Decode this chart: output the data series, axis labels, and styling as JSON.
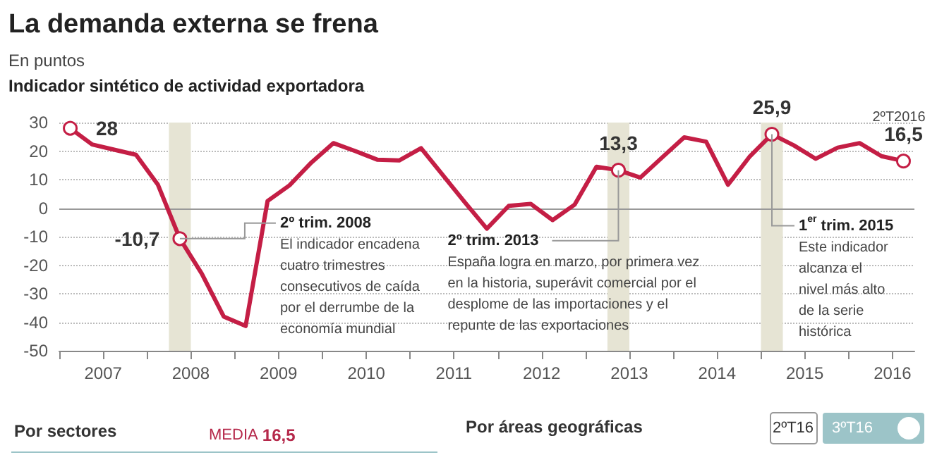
{
  "chart_data": {
    "type": "line",
    "title": "La demanda externa se frena",
    "subtitle": "En puntos",
    "ylabel": "Indicador sintético de actividad exportadora",
    "x": [
      2007.125,
      2007.375,
      2007.625,
      2007.875,
      2008.125,
      2008.375,
      2008.625,
      2008.875,
      2009.125,
      2009.375,
      2009.625,
      2009.875,
      2010.125,
      2010.375,
      2010.625,
      2010.875,
      2011.125,
      2011.375,
      2011.625,
      2011.875,
      2012.125,
      2012.375,
      2012.625,
      2012.875,
      2013.125,
      2013.375,
      2013.625,
      2013.875,
      2014.125,
      2014.375,
      2014.625,
      2014.875,
      2015.125,
      2015.375,
      2015.625,
      2015.875,
      2016.125,
      2016.375,
      2016.625
    ],
    "series": [
      {
        "color": "#c41e45",
        "values": [
          28,
          22.3,
          20.5,
          18.7,
          8.2,
          -10.7,
          -23,
          -38,
          -41.3,
          2.5,
          8,
          16,
          22.8,
          20,
          17,
          16.7,
          21,
          11.5,
          2,
          -7.2,
          0.8,
          1.5,
          -4.2,
          1.2,
          14.5,
          13.3,
          10.7,
          17.8,
          24.8,
          23.3,
          8.2,
          18.2,
          25.9,
          22,
          17.3,
          21.2,
          22.8,
          18.2,
          16.5
        ],
        "value_labels": [
          "28",
          null,
          null,
          null,
          null,
          "-10,7",
          null,
          null,
          null,
          null,
          null,
          null,
          null,
          null,
          null,
          null,
          null,
          null,
          null,
          null,
          null,
          null,
          null,
          null,
          null,
          "13,3",
          null,
          null,
          null,
          null,
          null,
          null,
          "25,9",
          null,
          null,
          null,
          null,
          null,
          "16,5"
        ]
      }
    ],
    "xlim": [
      2007,
      2016.75
    ],
    "xticks": [
      {
        "value": 2007,
        "label": null
      },
      {
        "value": 2007.5,
        "label": "2007"
      },
      {
        "value": 2008,
        "label": null
      },
      {
        "value": 2008.5,
        "label": "2008"
      },
      {
        "value": 2009,
        "label": null
      },
      {
        "value": 2009.5,
        "label": "2009"
      },
      {
        "value": 2010,
        "label": null
      },
      {
        "value": 2010.5,
        "label": "2010"
      },
      {
        "value": 2011,
        "label": null
      },
      {
        "value": 2011.5,
        "label": "2011"
      },
      {
        "value": 2012,
        "label": null
      },
      {
        "value": 2012.5,
        "label": "2012"
      },
      {
        "value": 2013,
        "label": null
      },
      {
        "value": 2013.5,
        "label": "2013"
      },
      {
        "value": 2014,
        "label": null
      },
      {
        "value": 2014.5,
        "label": "2014"
      },
      {
        "value": 2015,
        "label": null
      },
      {
        "value": 2015.5,
        "label": "2015"
      },
      {
        "value": 2016,
        "label": null
      },
      {
        "value": 2016.5,
        "label": "2016"
      }
    ],
    "ylim": [
      -50,
      30
    ],
    "yticks": [
      -50,
      -40,
      -30,
      -20,
      -10,
      0,
      10,
      20,
      30
    ],
    "grid": "y",
    "line_style": "solid",
    "ref_lines": [
      {
        "axis": "y",
        "value": 0,
        "color": "#999999",
        "line_style": "solid"
      }
    ],
    "bands": [
      {
        "axis": "x",
        "from": 2008.25,
        "to": 2008.5,
        "color": "#e6e4d4"
      },
      {
        "axis": "x",
        "from": 2013.25,
        "to": 2013.5,
        "color": "#e6e4d4"
      },
      {
        "axis": "x",
        "from": 2015.0,
        "to": 2015.25,
        "color": "#e6e4d4"
      }
    ],
    "annotations": [
      {
        "text": "2º trim. 2008\nEl indicador encadena\ncuatro trimestres\nconsecutivos de caída\npor el derrumbe de la\neconomía mundial",
        "x": 2008.375,
        "y": -10.7
      },
      {
        "text": "2º trim. 2013\nEspaña logra en marzo, por primera vez\nen la historia, superávit comercial por el\ndesplome de las importaciones y el\nrepunte de las exportaciones",
        "x": 2013.375,
        "y": 13.3
      },
      {
        "text": "1$^{er}$ trim. 2015\nEste indicador\nalcanza el\nnivel más alto\nde la serie\nhistórica",
        "x": 2015.125,
        "y": 25.9
      },
      {
        "text": "2ºT2016",
        "x": 2016.625,
        "y": 16.5
      },
      "Por sectores",
      "MEDIA 16,5",
      "Por áreas geográficas",
      "2ºT16",
      "3ºT16"
    ]
  }
}
